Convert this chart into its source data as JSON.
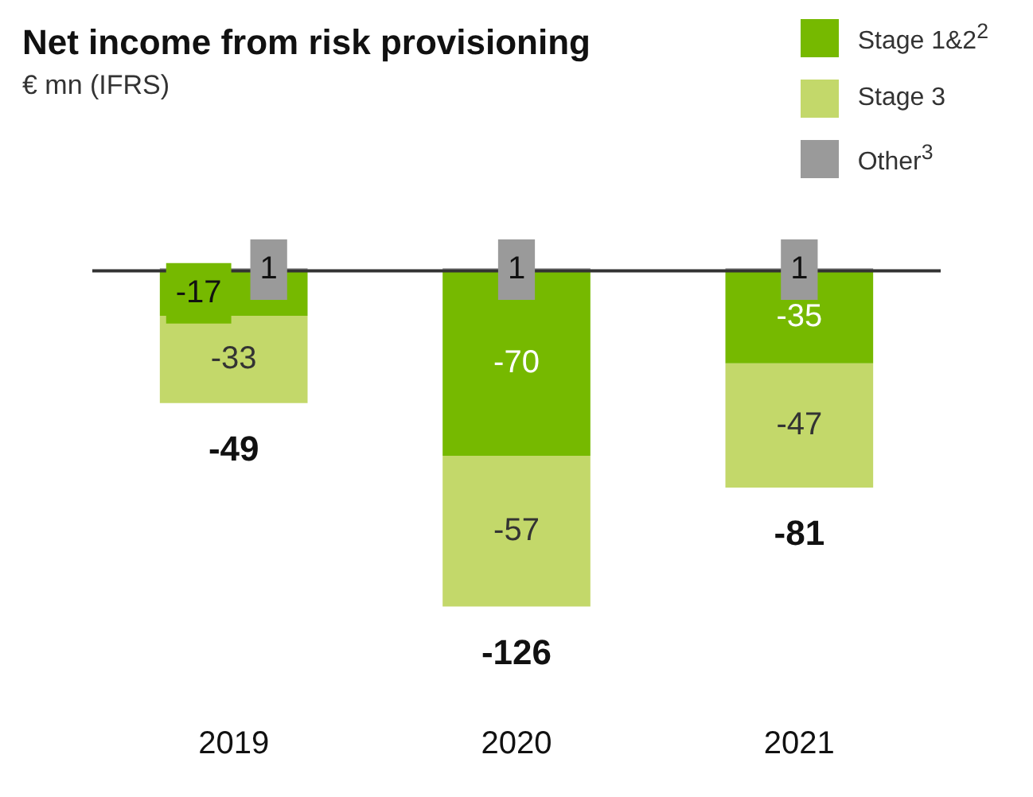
{
  "chart_data": {
    "type": "bar",
    "title": "Net income from risk provisioning",
    "subtitle": "€ mn (IFRS)",
    "categories": [
      "2019",
      "2020",
      "2021"
    ],
    "stacked": true,
    "data_labels": true,
    "legend": "top right",
    "grid": false,
    "series": [
      {
        "name": "Stage 1&2$^{2}$",
        "color": "#76b900",
        "values": [
          -17,
          -70,
          -35
        ]
      },
      {
        "name": "Stage 3",
        "color": "#c3d86a",
        "values": [
          -33,
          -57,
          -47
        ]
      },
      {
        "name": "Other$^{3}$",
        "color": "#9a9a9a",
        "values": [
          1,
          1,
          1
        ]
      }
    ],
    "totals": [
      "-49",
      "-126",
      "-81"
    ],
    "ref_lines": [
      {
        "axis": "y",
        "value": 0,
        "color": "#333333"
      }
    ]
  }
}
